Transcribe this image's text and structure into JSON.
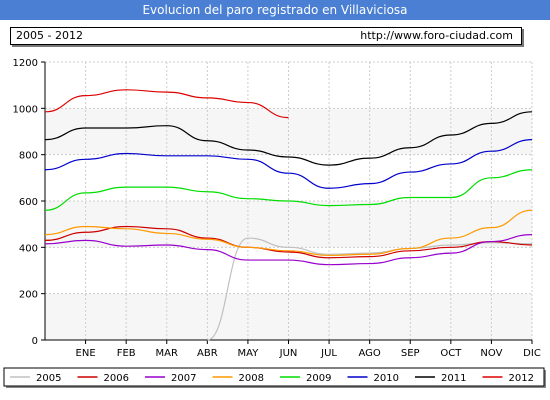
{
  "header": {
    "title": "Evolucion del paro registrado en Villaviciosa",
    "range_label": "2005 - 2012",
    "url_label": "http://www.foro-ciudad.com"
  },
  "chart_data": {
    "type": "line",
    "title": "Evolucion del paro registrado en Villaviciosa",
    "xlabel": "",
    "ylabel": "",
    "x": [
      "ENE",
      "FEB",
      "MAR",
      "ABR",
      "MAY",
      "JUN",
      "JUL",
      "AGO",
      "SEP",
      "OCT",
      "NOV",
      "DIC"
    ],
    "ylim": [
      0,
      1200
    ],
    "yticks": [
      0,
      200,
      400,
      600,
      800,
      1000,
      1200
    ],
    "grid": true,
    "legend_position": "bottom",
    "series": [
      {
        "name": "2005",
        "color": "#c0c0c0",
        "start": null,
        "values": [
          null,
          null,
          null,
          0,
          440,
          400,
          370,
          375,
          395,
          410,
          420,
          415
        ]
      },
      {
        "name": "2006",
        "color": "#cc0000",
        "start": 430,
        "values": [
          465,
          490,
          480,
          440,
          400,
          380,
          355,
          360,
          385,
          400,
          425,
          410
        ]
      },
      {
        "name": "2007",
        "color": "#9900cc",
        "start": 415,
        "values": [
          430,
          405,
          410,
          390,
          345,
          345,
          325,
          330,
          355,
          375,
          425,
          455
        ]
      },
      {
        "name": "2008",
        "color": "#ff9900",
        "start": 455,
        "values": [
          490,
          480,
          460,
          435,
          400,
          385,
          365,
          370,
          395,
          440,
          485,
          560
        ]
      },
      {
        "name": "2009",
        "color": "#00dd00",
        "start": 560,
        "values": [
          635,
          660,
          660,
          640,
          610,
          600,
          580,
          585,
          615,
          615,
          700,
          735
        ]
      },
      {
        "name": "2010",
        "color": "#0000cc",
        "start": 735,
        "values": [
          780,
          805,
          795,
          795,
          780,
          720,
          655,
          675,
          725,
          760,
          815,
          865
        ]
      },
      {
        "name": "2011",
        "color": "#000000",
        "start": 865,
        "values": [
          915,
          915,
          925,
          860,
          820,
          790,
          755,
          785,
          830,
          885,
          935,
          985
        ]
      },
      {
        "name": "2012",
        "color": "#dd0000",
        "start": 985,
        "values": [
          1055,
          1080,
          1070,
          1045,
          1025,
          960,
          null,
          null,
          null,
          null,
          null,
          null
        ]
      }
    ]
  }
}
